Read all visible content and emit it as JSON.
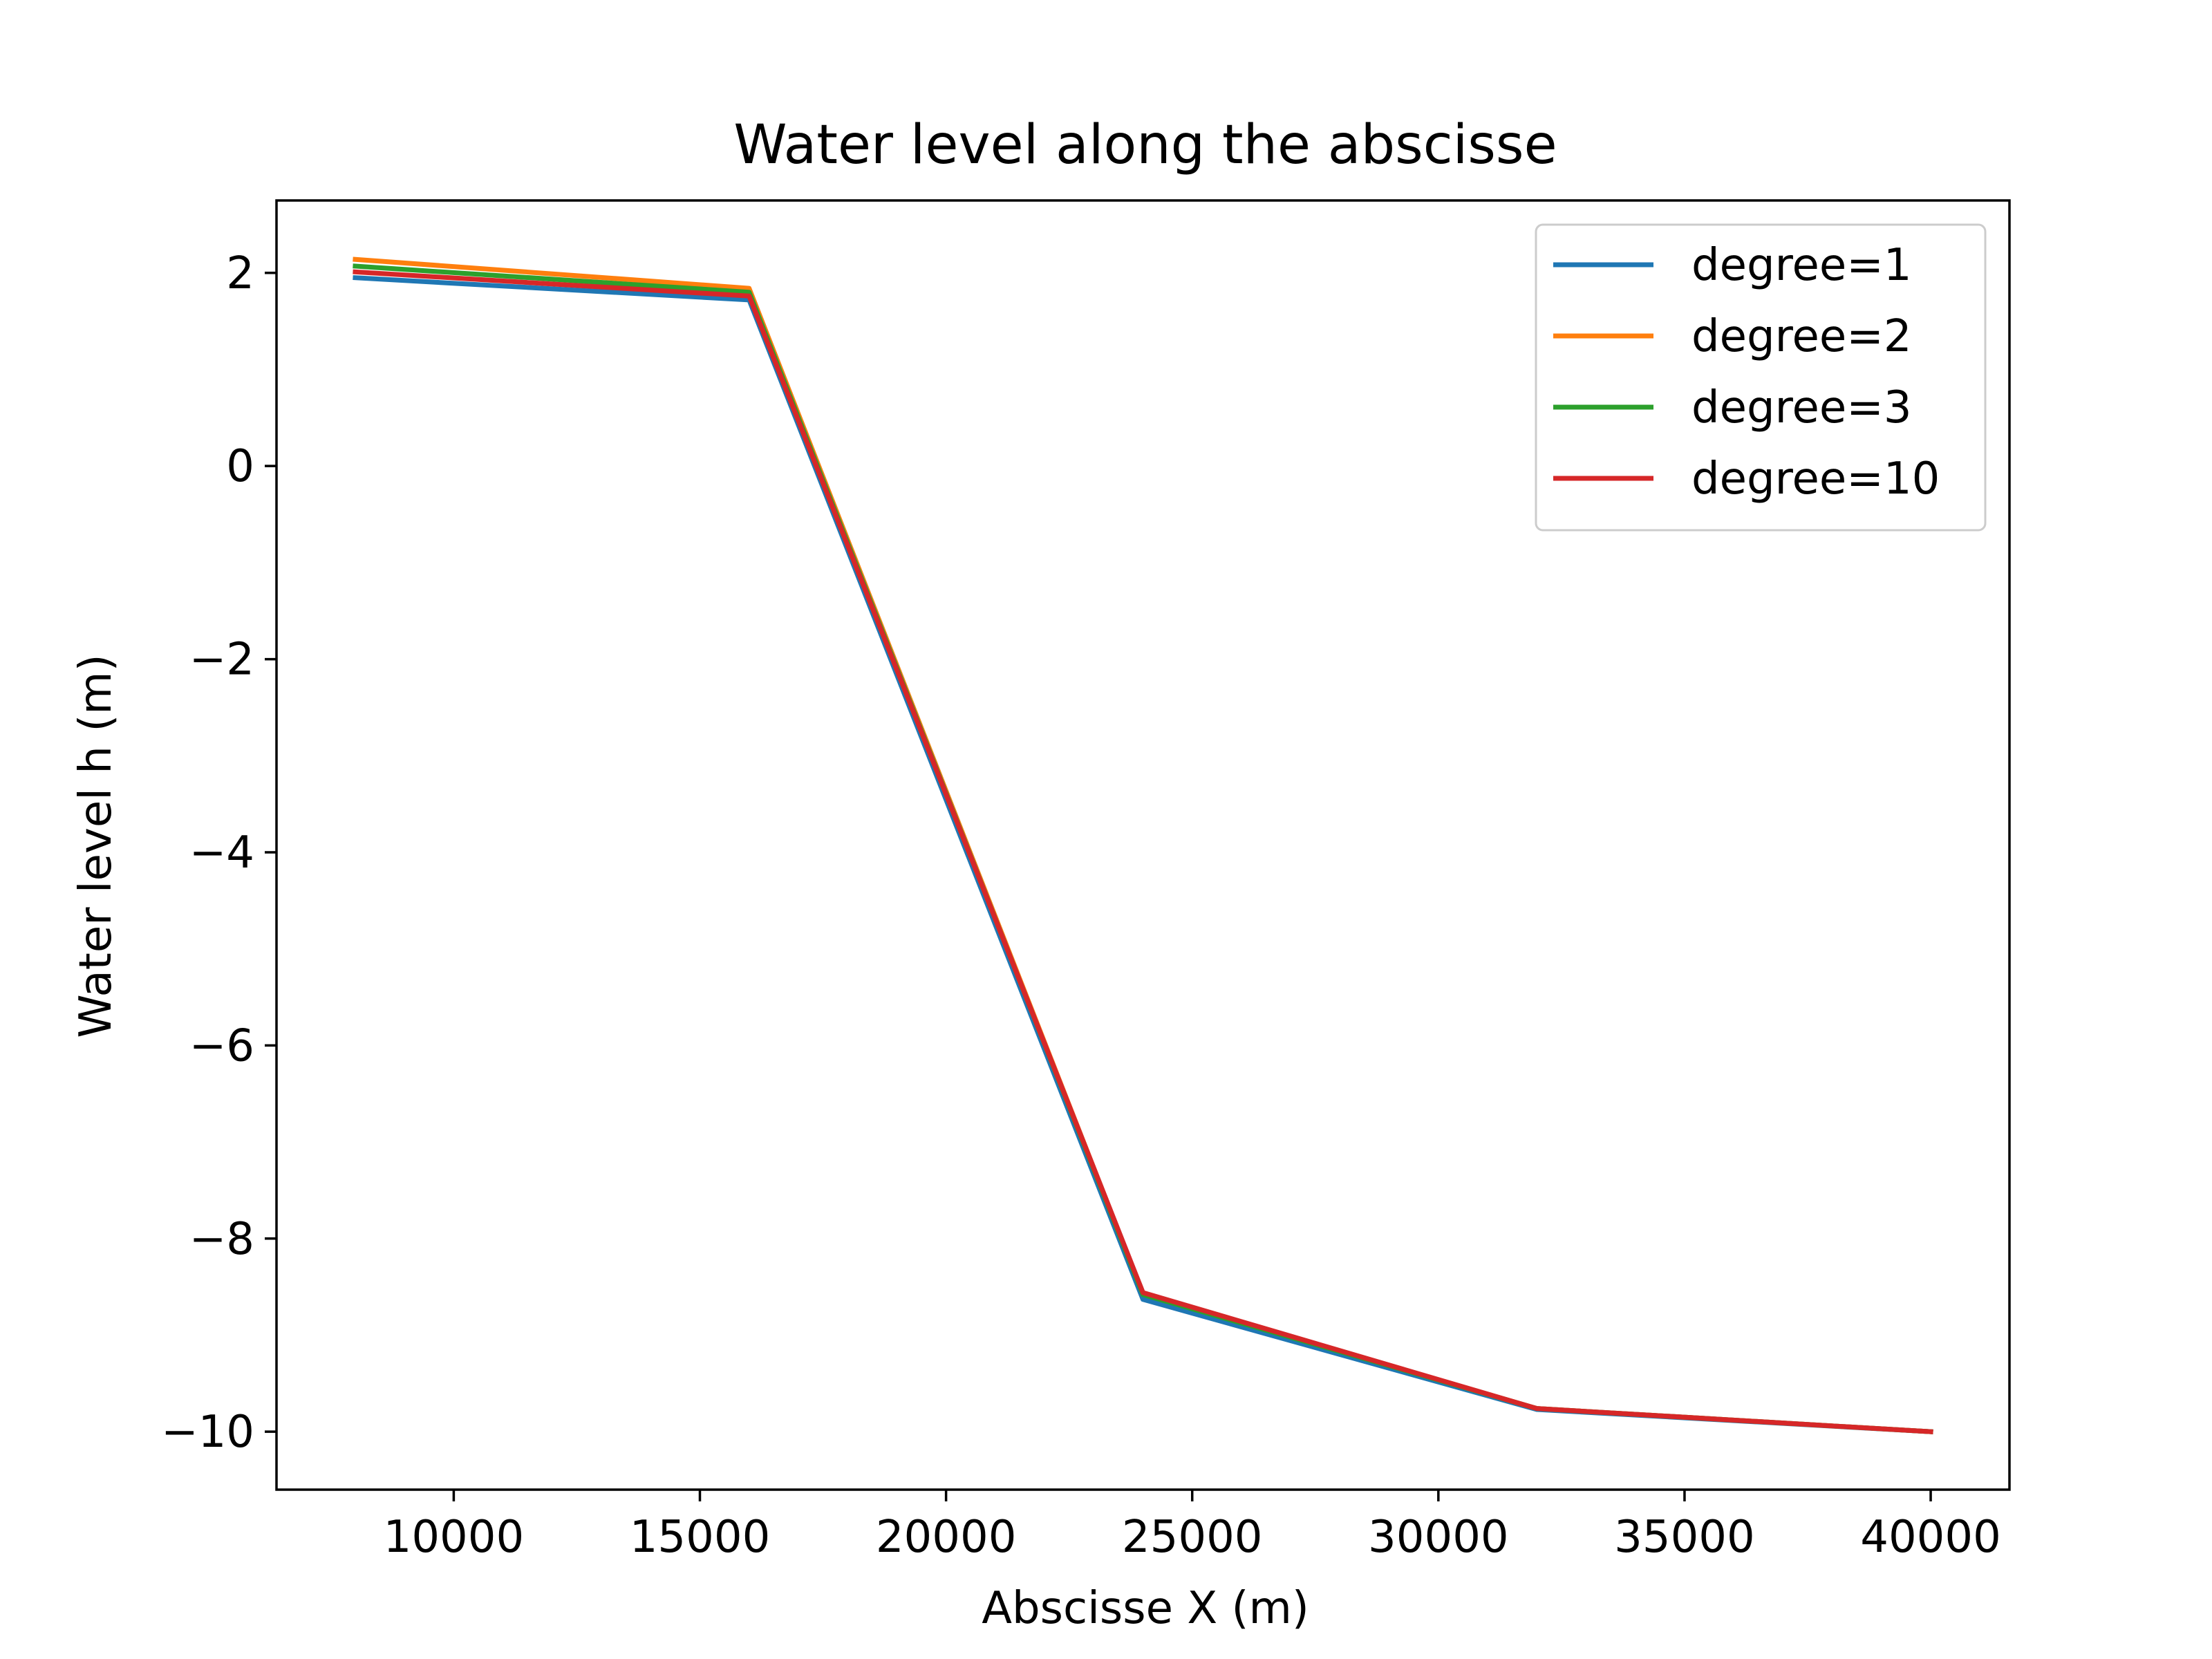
{
  "chart_data": {
    "type": "line",
    "title": "Water level along the abscisse",
    "xlabel": "Abscisse X (m)",
    "ylabel": "Water level h (m)",
    "xlim": [
      6400,
      41600
    ],
    "ylim": [
      -10.6,
      2.75
    ],
    "xticks": [
      10000,
      15000,
      20000,
      25000,
      30000,
      35000,
      40000
    ],
    "xtick_labels": [
      "10000",
      "15000",
      "20000",
      "25000",
      "30000",
      "35000",
      "40000"
    ],
    "yticks": [
      2,
      0,
      -2,
      -4,
      -6,
      -8,
      -10
    ],
    "ytick_labels": [
      "2",
      "0",
      "−2",
      "−4",
      "−6",
      "−8",
      "−10"
    ],
    "grid": false,
    "legend_position": "top-right",
    "x": [
      8000,
      16000,
      24000,
      32000,
      40000
    ],
    "series": [
      {
        "name": "degree=1",
        "color": "#1f77b4",
        "values": [
          1.95,
          1.72,
          -8.63,
          -9.77,
          -10.0
        ]
      },
      {
        "name": "degree=2",
        "color": "#ff7f0e",
        "values": [
          2.14,
          1.84,
          -8.57,
          -9.76,
          -10.0
        ]
      },
      {
        "name": "degree=3",
        "color": "#2ca02c",
        "values": [
          2.07,
          1.8,
          -8.58,
          -9.76,
          -10.0
        ]
      },
      {
        "name": "degree=10",
        "color": "#d62728",
        "values": [
          2.01,
          1.76,
          -8.56,
          -9.76,
          -10.0
        ]
      }
    ]
  }
}
